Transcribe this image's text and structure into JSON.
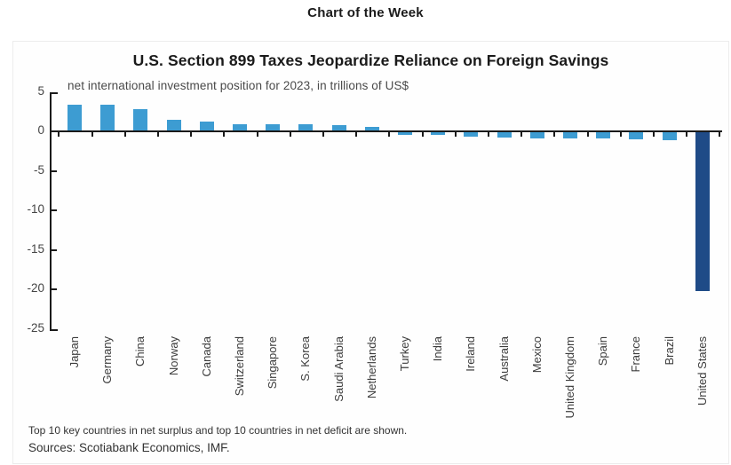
{
  "page": {
    "header": "Chart of the Week"
  },
  "chart": {
    "footnote": "Top 10 key countries in net surplus and top 10 countries in net deficit are shown.",
    "sources": "Sources: Scotiabank Economics, IMF.",
    "colors": {
      "bar": "#3D9CD2",
      "bar_highlight": "#1F4B87",
      "axis": "#1a1a1a"
    }
  },
  "chart_data": {
    "type": "bar",
    "title": "U.S. Section 899 Taxes Jeopardize Reliance on Foreign Savings",
    "subtitle": "net international investment position for 2023, in trillions of US$",
    "categories": [
      "Japan",
      "Germany",
      "China",
      "Norway",
      "Canada",
      "Switzerland",
      "Singapore",
      "S. Korea",
      "Saudi Arabia",
      "Netherlands",
      "Turkey",
      "India",
      "Ireland",
      "Australia",
      "Mexico",
      "United Kingdom",
      "Spain",
      "France",
      "Brazil",
      "United States"
    ],
    "values": [
      3.4,
      3.4,
      2.9,
      1.5,
      1.3,
      1.0,
      0.95,
      0.9,
      0.85,
      0.65,
      -0.4,
      -0.45,
      -0.6,
      -0.7,
      -0.8,
      -0.9,
      -0.9,
      -1.0,
      -1.1,
      -20.2
    ],
    "highlight_category": "United States",
    "yticks": [
      5,
      0,
      -5,
      -10,
      -15,
      -20,
      -25
    ],
    "ylim": [
      -25,
      5
    ],
    "grid": false,
    "legend": "none",
    "xlabel": "",
    "ylabel": "trillions of US$"
  }
}
